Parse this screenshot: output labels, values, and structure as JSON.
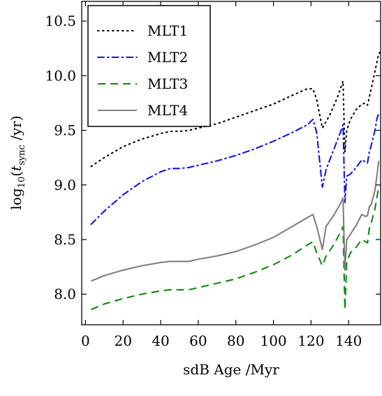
{
  "chart_data": {
    "type": "line",
    "title": "",
    "xlabel": "sdB Age /Myr",
    "ylabel": {
      "prefix": "log",
      "sub10": "10",
      "paren_open": "(",
      "t": "t",
      "sub_sync": "sync",
      "unit": " /yr)"
    },
    "xlim": [
      -2,
      157
    ],
    "ylim": [
      7.72,
      10.68
    ],
    "x_ticks": [
      0,
      20,
      40,
      60,
      80,
      100,
      120,
      140
    ],
    "y_ticks": [
      8.0,
      8.5,
      9.0,
      9.5,
      10.0,
      10.5
    ],
    "x_tick_labels": [
      "0",
      "20",
      "40",
      "60",
      "80",
      "100",
      "120",
      "140"
    ],
    "y_tick_labels": [
      "8.0",
      "8.5",
      "9.0",
      "9.5",
      "10.0",
      "10.5"
    ],
    "grid": false,
    "legend_position": "top-left",
    "series": [
      {
        "name": "MLT1",
        "color": "#000000",
        "style": "dotted",
        "x": [
          3,
          10,
          20,
          30,
          40,
          45,
          50,
          55,
          60,
          70,
          80,
          90,
          100,
          110,
          118,
          121,
          123,
          126,
          130,
          134,
          137,
          138,
          139,
          141,
          144,
          147,
          149,
          150,
          151,
          152,
          154,
          155,
          156,
          157
        ],
        "y": [
          9.17,
          9.25,
          9.35,
          9.42,
          9.47,
          9.49,
          9.49,
          9.5,
          9.52,
          9.56,
          9.62,
          9.68,
          9.74,
          9.82,
          9.88,
          9.88,
          9.78,
          9.52,
          9.64,
          9.8,
          9.95,
          9.3,
          9.5,
          9.6,
          9.69,
          9.74,
          9.75,
          9.73,
          9.8,
          9.88,
          10.04,
          10.12,
          10.2,
          10.22
        ]
      },
      {
        "name": "MLT2",
        "color": "#1515e6",
        "style": "dashdot",
        "x": [
          3,
          10,
          20,
          30,
          40,
          45,
          50,
          55,
          60,
          70,
          80,
          90,
          100,
          110,
          118,
          121,
          123,
          126,
          128,
          132,
          136,
          137,
          138,
          139,
          141,
          144,
          147,
          149,
          150,
          151,
          152,
          154,
          155,
          156
        ],
        "y": [
          8.64,
          8.76,
          8.91,
          9.03,
          9.12,
          9.15,
          9.15,
          9.16,
          9.18,
          9.22,
          9.27,
          9.33,
          9.4,
          9.48,
          9.55,
          9.6,
          9.48,
          8.98,
          9.14,
          9.32,
          9.5,
          9.55,
          8.84,
          9.08,
          9.1,
          9.16,
          9.23,
          9.21,
          9.2,
          9.3,
          9.36,
          9.5,
          9.6,
          9.66
        ]
      },
      {
        "name": "MLT3",
        "color": "#0e8a0e",
        "style": "dashed",
        "x": [
          3,
          10,
          20,
          30,
          40,
          45,
          50,
          55,
          60,
          70,
          80,
          90,
          100,
          110,
          118,
          121,
          123,
          126,
          128,
          132,
          136,
          137,
          138,
          139,
          141,
          144,
          147,
          149,
          150,
          151,
          152,
          154,
          155,
          156
        ],
        "y": [
          7.86,
          7.91,
          7.96,
          8.0,
          8.03,
          8.04,
          8.04,
          8.04,
          8.06,
          8.1,
          8.14,
          8.2,
          8.27,
          8.36,
          8.45,
          8.48,
          8.38,
          8.26,
          8.35,
          8.45,
          8.58,
          8.62,
          7.86,
          8.3,
          8.38,
          8.43,
          8.5,
          8.48,
          8.47,
          8.6,
          8.65,
          8.78,
          8.88,
          8.98
        ]
      },
      {
        "name": "MLT4",
        "color": "#808080",
        "style": "solid",
        "x": [
          3,
          10,
          20,
          30,
          40,
          45,
          50,
          55,
          60,
          70,
          80,
          90,
          100,
          110,
          118,
          121,
          123,
          126,
          128,
          132,
          136,
          137,
          138,
          139,
          141,
          144,
          147,
          149,
          150,
          151,
          152,
          154,
          155,
          156
        ],
        "y": [
          8.12,
          8.17,
          8.22,
          8.26,
          8.29,
          8.3,
          8.3,
          8.3,
          8.32,
          8.35,
          8.39,
          8.45,
          8.52,
          8.62,
          8.7,
          8.73,
          8.62,
          8.41,
          8.62,
          8.72,
          8.84,
          8.88,
          8.22,
          8.5,
          8.55,
          8.63,
          8.73,
          8.71,
          8.72,
          8.8,
          8.82,
          8.95,
          9.08,
          9.22
        ]
      }
    ]
  }
}
